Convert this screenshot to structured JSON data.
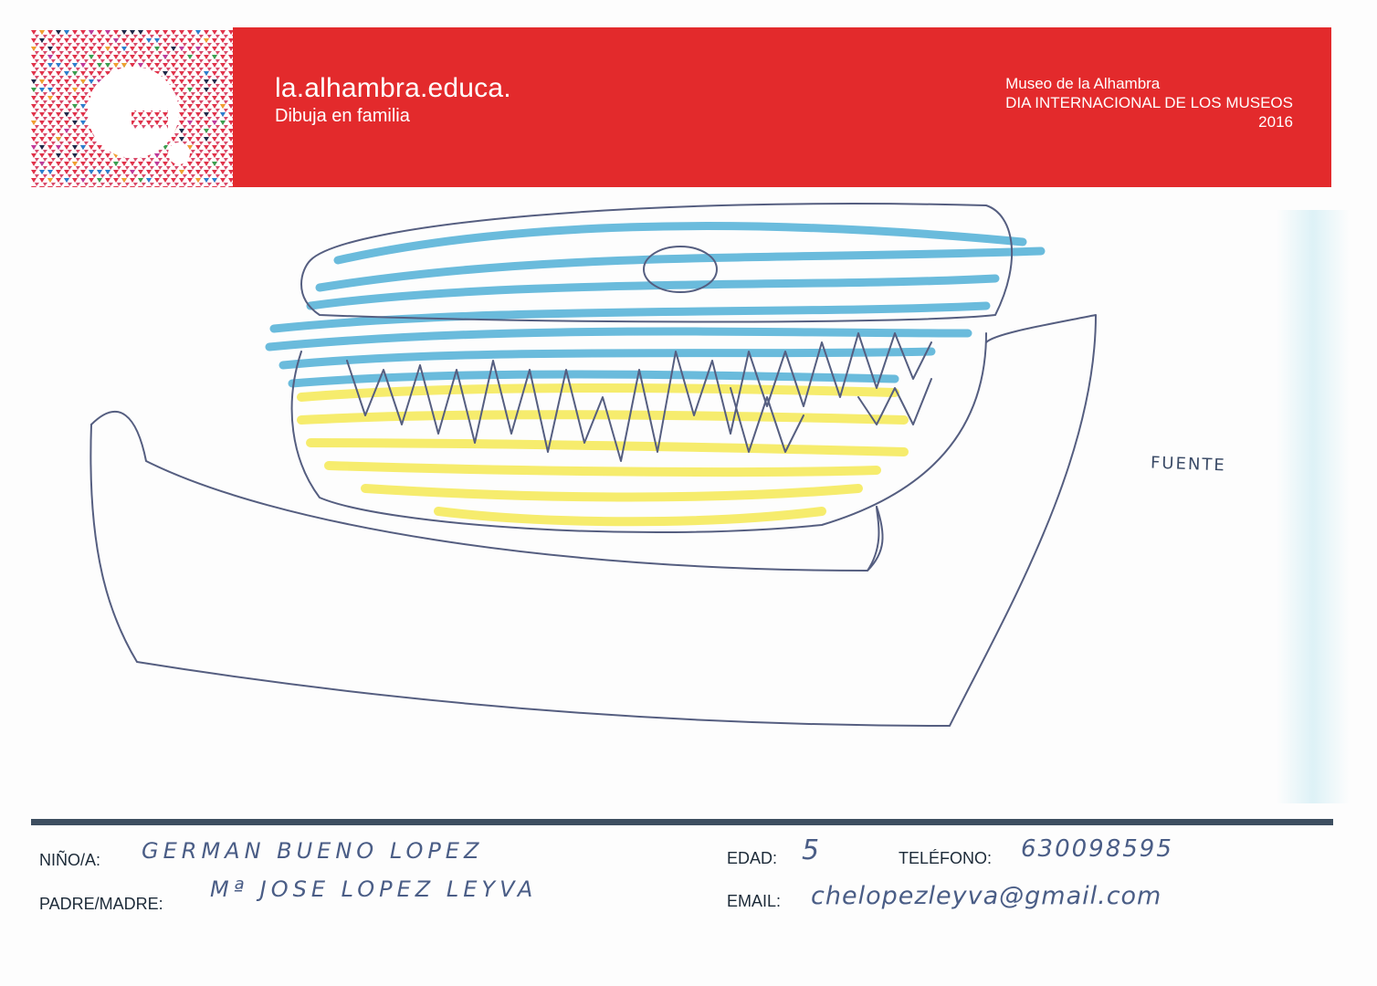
{
  "header": {
    "title": "la.alhambra.educa.",
    "subtitle": "Dibuja en familia",
    "museum": "Museo de la Alhambra",
    "event": "DIA INTERNACIONAL DE LOS MUSEOS",
    "year": "2016",
    "brand_color": "#e32a2c"
  },
  "drawing": {
    "annotation": "FUENTE"
  },
  "form": {
    "child_label": "NIÑO/A:",
    "child_value": "GERMAN BUENO LOPEZ",
    "parent_label": "PADRE/MADRE:",
    "parent_value": "Mª JOSE LOPEZ LEYVA",
    "age_label": "EDAD:",
    "age_value": "5",
    "phone_label": "TELÉFONO:",
    "phone_value": "630098595",
    "email_label": "EMAIL:",
    "email_value": "chelopezleyva@gmail.com"
  }
}
